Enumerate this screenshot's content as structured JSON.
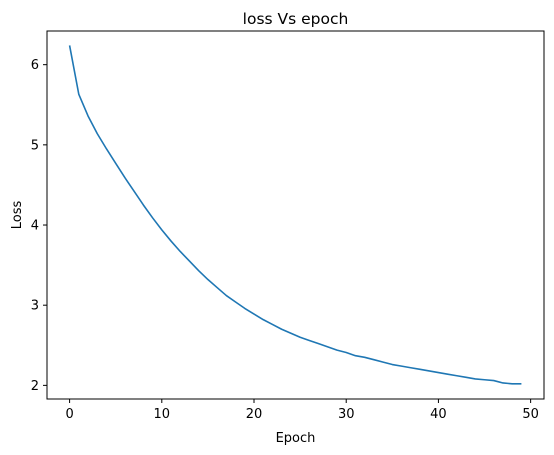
{
  "chart_data": {
    "type": "line",
    "title": "loss Vs epoch",
    "xlabel": "Epoch",
    "ylabel": "Loss",
    "xlim": [
      -2.45,
      51.45
    ],
    "ylim": [
      1.83,
      6.42
    ],
    "xticks": [
      0,
      10,
      20,
      30,
      40,
      50
    ],
    "yticks": [
      2,
      3,
      4,
      5,
      6
    ],
    "grid": false,
    "legend": "none",
    "colors": {
      "line": "#1f77b4",
      "axes": "#000000"
    },
    "series": [
      {
        "x": [
          0,
          1,
          2,
          3,
          4,
          5,
          6,
          7,
          8,
          9,
          10,
          11,
          12,
          13,
          14,
          15,
          16,
          17,
          18,
          19,
          20,
          21,
          22,
          23,
          24,
          25,
          26,
          27,
          28,
          29,
          30,
          31,
          32,
          33,
          34,
          35,
          36,
          37,
          38,
          39,
          40,
          41,
          42,
          43,
          44,
          45,
          46,
          47,
          48,
          49
        ],
        "values": [
          6.24,
          5.63,
          5.36,
          5.14,
          4.95,
          4.77,
          4.59,
          4.42,
          4.25,
          4.09,
          3.94,
          3.8,
          3.67,
          3.55,
          3.43,
          3.32,
          3.22,
          3.12,
          3.04,
          2.96,
          2.89,
          2.82,
          2.76,
          2.7,
          2.65,
          2.6,
          2.56,
          2.52,
          2.48,
          2.44,
          2.41,
          2.37,
          2.35,
          2.32,
          2.29,
          2.26,
          2.24,
          2.22,
          2.2,
          2.18,
          2.16,
          2.14,
          2.12,
          2.1,
          2.08,
          2.07,
          2.06,
          2.03,
          2.02,
          2.02
        ]
      }
    ]
  }
}
